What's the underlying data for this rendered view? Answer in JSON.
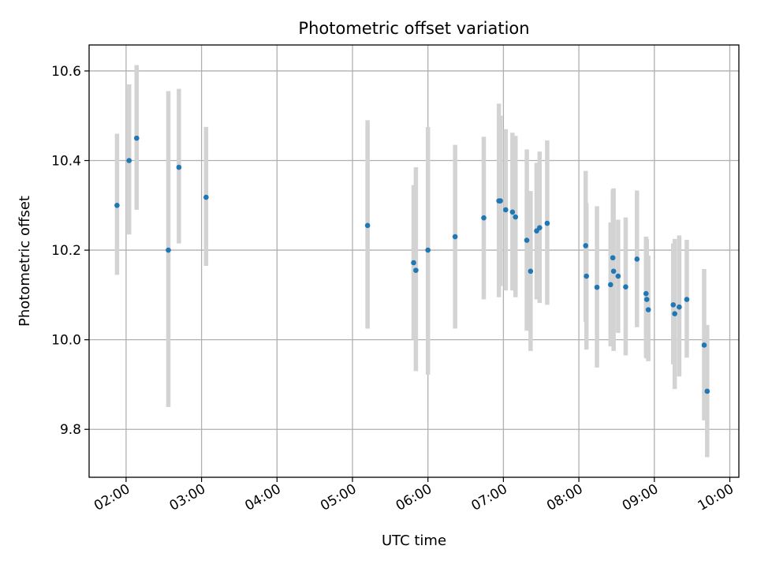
{
  "chart_data": {
    "type": "scatter",
    "title": "Photometric offset variation",
    "xlabel": "UTC time",
    "ylabel": "Photometric offset",
    "x_unit": "hours UTC",
    "xlim": [
      1.51,
      10.12
    ],
    "ylim": [
      9.693,
      10.658
    ],
    "grid": true,
    "x_ticks": [
      2,
      3,
      4,
      5,
      6,
      7,
      8,
      9,
      10
    ],
    "x_tick_labels": [
      "02:00",
      "03:00",
      "04:00",
      "05:00",
      "06:00",
      "07:00",
      "08:00",
      "09:00",
      "10:00"
    ],
    "y_ticks": [
      9.8,
      10.0,
      10.2,
      10.4,
      10.6
    ],
    "y_tick_labels": [
      "9.8",
      "10.0",
      "10.2",
      "10.4",
      "10.6"
    ],
    "colors": {
      "marker": "#1f77b4",
      "errorbar": "#d3d3d3",
      "grid": "#b0b0b0",
      "axes": "#000000"
    },
    "points": [
      {
        "x": 1.88,
        "y": 10.3,
        "lo": 10.145,
        "hi": 10.46
      },
      {
        "x": 2.04,
        "y": 10.4,
        "lo": 10.235,
        "hi": 10.57
      },
      {
        "x": 2.14,
        "y": 10.45,
        "lo": 10.29,
        "hi": 10.613
      },
      {
        "x": 2.56,
        "y": 10.2,
        "lo": 9.85,
        "hi": 10.555
      },
      {
        "x": 2.7,
        "y": 10.385,
        "lo": 10.215,
        "hi": 10.56
      },
      {
        "x": 3.06,
        "y": 10.318,
        "lo": 10.165,
        "hi": 10.475
      },
      {
        "x": 5.2,
        "y": 10.255,
        "lo": 10.025,
        "hi": 10.49
      },
      {
        "x": 5.81,
        "y": 10.172,
        "lo": 10.0,
        "hi": 10.345
      },
      {
        "x": 5.84,
        "y": 10.155,
        "lo": 9.93,
        "hi": 10.385
      },
      {
        "x": 6.0,
        "y": 10.2,
        "lo": 9.922,
        "hi": 10.475
      },
      {
        "x": 6.36,
        "y": 10.23,
        "lo": 10.025,
        "hi": 10.435
      },
      {
        "x": 6.74,
        "y": 10.272,
        "lo": 10.09,
        "hi": 10.453
      },
      {
        "x": 6.94,
        "y": 10.31,
        "lo": 10.095,
        "hi": 10.527
      },
      {
        "x": 6.96,
        "y": 10.31,
        "lo": 10.12,
        "hi": 10.5
      },
      {
        "x": 7.03,
        "y": 10.29,
        "lo": 10.11,
        "hi": 10.47
      },
      {
        "x": 7.12,
        "y": 10.285,
        "lo": 10.11,
        "hi": 10.462
      },
      {
        "x": 7.16,
        "y": 10.274,
        "lo": 10.095,
        "hi": 10.455
      },
      {
        "x": 7.31,
        "y": 10.222,
        "lo": 10.02,
        "hi": 10.425
      },
      {
        "x": 7.36,
        "y": 10.153,
        "lo": 9.975,
        "hi": 10.332
      },
      {
        "x": 7.44,
        "y": 10.243,
        "lo": 10.09,
        "hi": 10.395
      },
      {
        "x": 7.48,
        "y": 10.25,
        "lo": 10.082,
        "hi": 10.42
      },
      {
        "x": 7.58,
        "y": 10.26,
        "lo": 10.078,
        "hi": 10.445
      },
      {
        "x": 8.09,
        "y": 10.21,
        "lo": 10.04,
        "hi": 10.377
      },
      {
        "x": 8.1,
        "y": 10.142,
        "lo": 9.978,
        "hi": 10.305
      },
      {
        "x": 8.24,
        "y": 10.117,
        "lo": 9.938,
        "hi": 10.298
      },
      {
        "x": 8.42,
        "y": 10.123,
        "lo": 9.985,
        "hi": 10.262
      },
      {
        "x": 8.45,
        "y": 10.183,
        "lo": 10.03,
        "hi": 10.335
      },
      {
        "x": 8.46,
        "y": 10.153,
        "lo": 9.975,
        "hi": 10.338
      },
      {
        "x": 8.52,
        "y": 10.142,
        "lo": 10.015,
        "hi": 10.268
      },
      {
        "x": 8.62,
        "y": 10.118,
        "lo": 9.965,
        "hi": 10.273
      },
      {
        "x": 8.77,
        "y": 10.18,
        "lo": 10.028,
        "hi": 10.333
      },
      {
        "x": 8.89,
        "y": 10.103,
        "lo": 9.96,
        "hi": 10.23
      },
      {
        "x": 8.9,
        "y": 10.09,
        "lo": 9.958,
        "hi": 10.225
      },
      {
        "x": 8.92,
        "y": 10.067,
        "lo": 9.952,
        "hi": 10.188
      },
      {
        "x": 9.25,
        "y": 10.078,
        "lo": 9.945,
        "hi": 10.215
      },
      {
        "x": 9.27,
        "y": 10.058,
        "lo": 9.89,
        "hi": 10.225
      },
      {
        "x": 9.33,
        "y": 10.073,
        "lo": 9.918,
        "hi": 10.233
      },
      {
        "x": 9.43,
        "y": 10.09,
        "lo": 9.96,
        "hi": 10.223
      },
      {
        "x": 9.66,
        "y": 9.988,
        "lo": 9.82,
        "hi": 10.158
      },
      {
        "x": 9.7,
        "y": 9.885,
        "lo": 9.738,
        "hi": 10.033
      }
    ]
  }
}
